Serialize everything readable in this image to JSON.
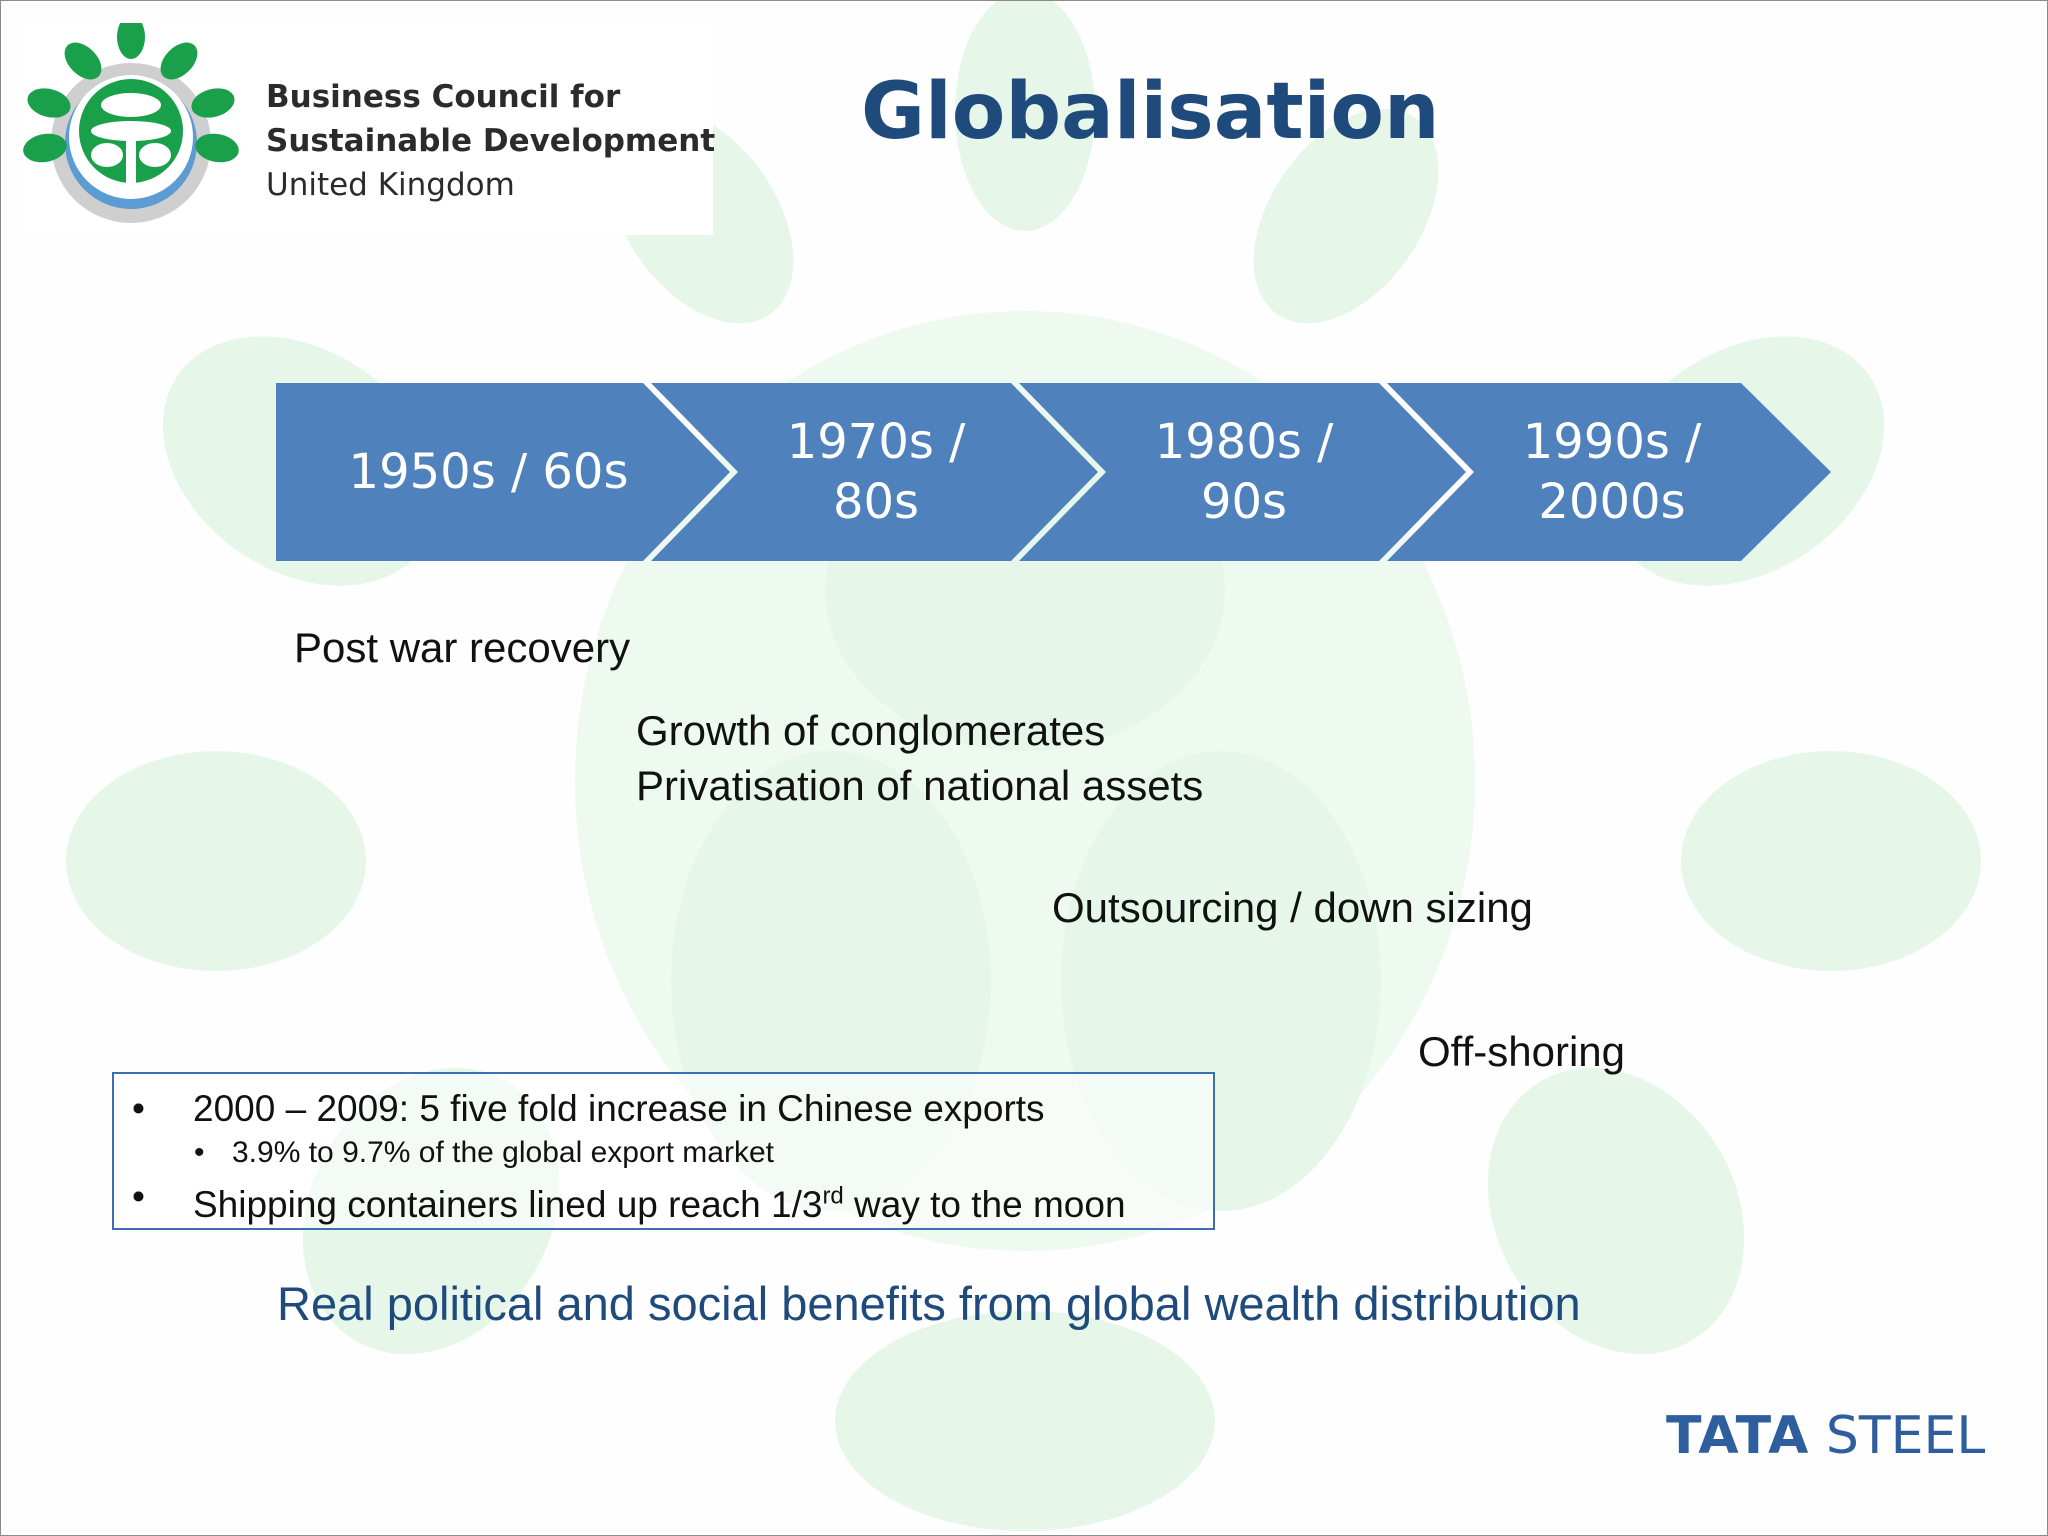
{
  "logo": {
    "line1": "Business Council for",
    "line2": "Sustainable Development",
    "line3": "United Kingdom"
  },
  "title": "Globalisation",
  "timeline": {
    "stages": [
      {
        "line1": "1950s / 60s",
        "line2": ""
      },
      {
        "line1": "1970s /",
        "line2": "80s"
      },
      {
        "line1": "1980s /",
        "line2": "90s"
      },
      {
        "line1": "1990s /",
        "line2": "2000s"
      }
    ]
  },
  "notes": {
    "n1": "Post war recovery",
    "n2a": "Growth of conglomerates",
    "n2b": "Privatisation of national assets",
    "n3": "Outsourcing / down sizing",
    "n4": "Off-shoring"
  },
  "infobox": {
    "bullet1": "2000 – 2009: 5 five fold increase in Chinese exports",
    "sub1": "3.9% to 9.7% of the global export market",
    "bullet2_pre": "Shipping containers lined up reach 1/3",
    "bullet2_sup": "rd",
    "bullet2_post": " way to the moon"
  },
  "footer": "Real political and social benefits from global wealth distribution",
  "brand": {
    "word1": "TATA",
    "word2": "STEEL"
  },
  "colors": {
    "title": "#1f4a7c",
    "chevron": "#4f81bd",
    "watermark": "#e6f7ea",
    "box_border": "#3a6fb6",
    "logo_green": "#1aa04a",
    "logo_blue": "#5d9bd5",
    "logo_gray": "#c9c9c9"
  }
}
